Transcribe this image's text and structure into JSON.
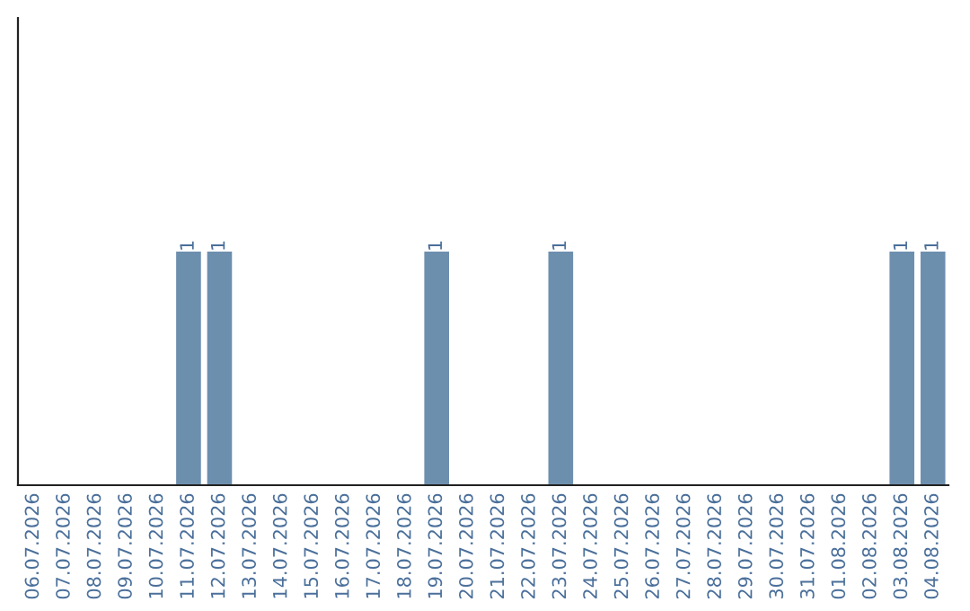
{
  "chart_data": {
    "type": "bar",
    "categories": [
      "06.07.2026",
      "07.07.2026",
      "08.07.2026",
      "09.07.2026",
      "10.07.2026",
      "11.07.2026",
      "12.07.2026",
      "13.07.2026",
      "14.07.2026",
      "15.07.2026",
      "16.07.2026",
      "17.07.2026",
      "18.07.2026",
      "19.07.2026",
      "20.07.2026",
      "21.07.2026",
      "22.07.2026",
      "23.07.2026",
      "24.07.2026",
      "25.07.2026",
      "26.07.2026",
      "27.07.2026",
      "28.07.2026",
      "29.07.2026",
      "30.07.2026",
      "31.07.2026",
      "01.08.2026",
      "02.08.2026",
      "03.08.2026",
      "04.08.2026"
    ],
    "values": [
      0,
      0,
      0,
      0,
      0,
      1,
      1,
      0,
      0,
      0,
      0,
      0,
      0,
      1,
      0,
      0,
      0,
      1,
      0,
      0,
      0,
      0,
      0,
      0,
      0,
      0,
      0,
      0,
      1,
      1
    ],
    "value_labels": [
      null,
      null,
      null,
      null,
      null,
      "1",
      "1",
      null,
      null,
      null,
      null,
      null,
      null,
      "1",
      null,
      null,
      null,
      "1",
      null,
      null,
      null,
      null,
      null,
      null,
      null,
      null,
      null,
      null,
      "1",
      "1"
    ],
    "color": "#6d8fae",
    "ylim": [
      0,
      2
    ],
    "tick_labels": "x",
    "grid": false,
    "legend": false
  }
}
